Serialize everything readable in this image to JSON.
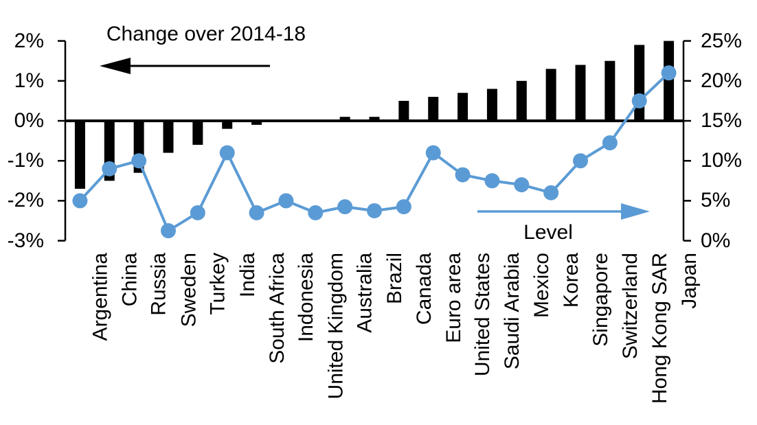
{
  "chart_data": {
    "type": "combo_bar_line",
    "title": "",
    "categories": [
      "Argentina",
      "China",
      "Russia",
      "Sweden",
      "Turkey",
      "India",
      "South Africa",
      "Indonesia",
      "United Kingdom",
      "Australia",
      "Brazil",
      "Canada",
      "Euro area",
      "United States",
      "Saudi Arabia",
      "Mexico",
      "Korea",
      "Singapore",
      "Switzerland",
      "Hong Kong SAR",
      "Japan"
    ],
    "series": [
      {
        "name": "Change over 2014-18",
        "type": "bar",
        "axis": "left",
        "color": "#000000",
        "values": [
          -1.7,
          -1.5,
          -1.3,
          -0.8,
          -0.6,
          -0.2,
          -0.1,
          0,
          0,
          0.1,
          0.1,
          0.5,
          0.6,
          0.7,
          0.8,
          1.0,
          1.3,
          1.4,
          1.5,
          1.9,
          2.0
        ]
      },
      {
        "name": "Level",
        "type": "line",
        "axis": "right",
        "color": "#5b9bd5",
        "values": [
          5.0,
          9.0,
          10.0,
          1.25,
          3.5,
          11.0,
          3.5,
          5.0,
          3.5,
          4.25,
          3.75,
          4.25,
          11.0,
          8.25,
          7.5,
          7.0,
          6.0,
          10.0,
          12.25,
          17.5,
          21.0
        ]
      }
    ],
    "left_axis": {
      "min": -3,
      "max": 2,
      "tick_values": [
        2,
        1,
        0,
        -1,
        -2,
        -3
      ],
      "ticks": [
        "2%",
        "1%",
        "0%",
        "-1%",
        "-2%",
        "-3%"
      ]
    },
    "right_axis": {
      "min": 0,
      "max": 25,
      "tick_values": [
        25,
        20,
        15,
        10,
        5,
        0
      ],
      "ticks": [
        "25%",
        "20%",
        "15%",
        "10%",
        "5%",
        "0%"
      ]
    },
    "annotations": [
      {
        "text": "Change over 2014-18",
        "arrow": "left",
        "arrow_color": "#000000"
      },
      {
        "text": "Level",
        "arrow": "right",
        "arrow_color": "#5b9bd5"
      }
    ],
    "grid": "off",
    "legend": "none"
  }
}
